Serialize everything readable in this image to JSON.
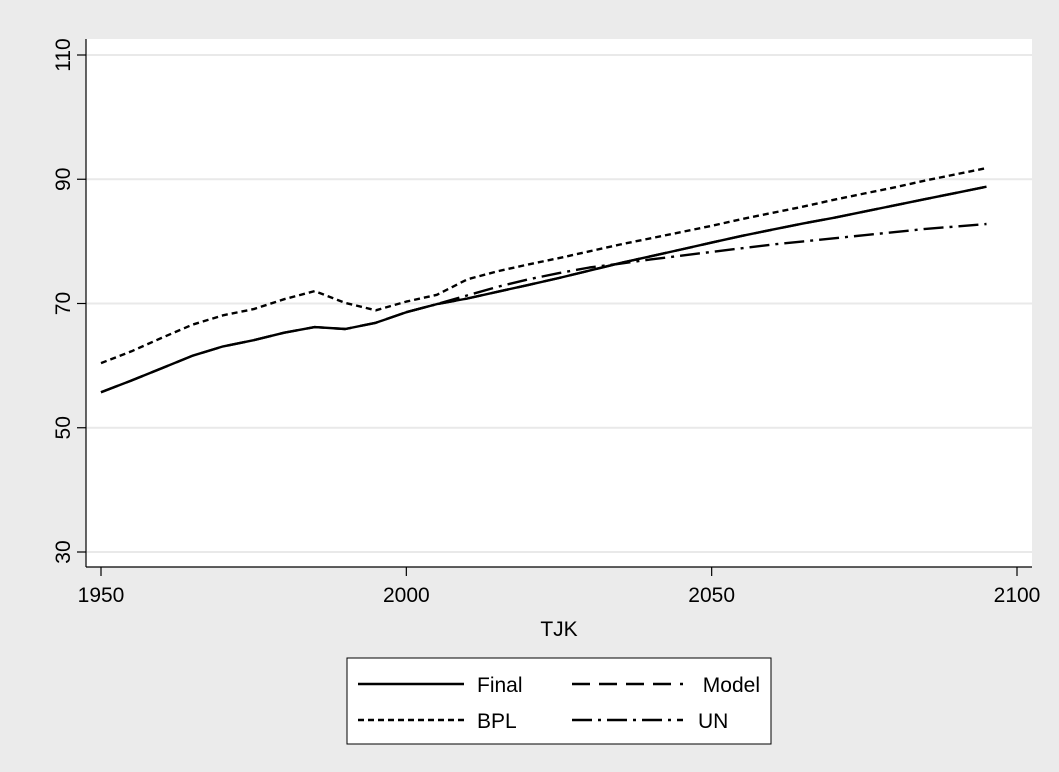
{
  "chart_data": {
    "type": "line",
    "title": "",
    "xlabel": "TJK",
    "ylabel": "",
    "xlim": [
      1948,
      2100
    ],
    "ylim": [
      28,
      112
    ],
    "xticks": [
      1950,
      2000,
      2050,
      2100
    ],
    "yticks": [
      30,
      50,
      70,
      90,
      110
    ],
    "grid": "horizontal",
    "legend_position": "bottom",
    "series": [
      {
        "name": "Final",
        "dash": "solid",
        "x": [
          1950,
          1955,
          1960,
          1965,
          1970,
          1975,
          1980,
          1985,
          1990,
          1995,
          2000,
          2005,
          2010,
          2015,
          2020,
          2025,
          2030,
          2035,
          2040,
          2045,
          2050,
          2055,
          2060,
          2065,
          2070,
          2075,
          2080,
          2085,
          2090,
          2095
        ],
        "y": [
          55.7,
          57.6,
          59.6,
          61.6,
          63.1,
          64.1,
          65.3,
          66.2,
          65.9,
          66.9,
          68.6,
          69.9,
          70.8,
          71.9,
          73.0,
          74.1,
          75.3,
          76.5,
          77.6,
          78.7,
          79.8,
          80.9,
          81.9,
          82.9,
          83.8,
          84.8,
          85.8,
          86.8,
          87.8,
          88.8
        ]
      },
      {
        "name": "Model",
        "dash": "long-dash",
        "x": [
          1950,
          1955,
          1960,
          1965,
          1970,
          1975,
          1980,
          1985,
          1990,
          1995,
          2000,
          2005,
          2010,
          2015,
          2020,
          2025,
          2030,
          2035,
          2040,
          2045,
          2050,
          2055,
          2060,
          2065,
          2070,
          2075,
          2080,
          2085,
          2090,
          2095
        ],
        "y": [
          55.7,
          57.6,
          59.6,
          61.6,
          63.1,
          64.1,
          65.3,
          66.2,
          65.9,
          66.9,
          68.6,
          69.9,
          70.8,
          71.9,
          73.0,
          74.1,
          75.3,
          76.5,
          77.6,
          78.7,
          79.8,
          80.9,
          81.9,
          82.9,
          83.8,
          84.8,
          85.8,
          86.8,
          87.8,
          88.8
        ]
      },
      {
        "name": "BPL",
        "dash": "short-dash",
        "x": [
          1950,
          1955,
          1960,
          1965,
          1970,
          1975,
          1980,
          1985,
          1990,
          1995,
          2000,
          2005,
          2010,
          2015,
          2020,
          2025,
          2030,
          2035,
          2040,
          2045,
          2050,
          2055,
          2060,
          2065,
          2070,
          2075,
          2080,
          2085,
          2090,
          2095
        ],
        "y": [
          60.4,
          62.3,
          64.5,
          66.6,
          68.1,
          69.1,
          70.7,
          72.0,
          70.1,
          68.9,
          70.3,
          71.4,
          73.9,
          75.2,
          76.3,
          77.3,
          78.4,
          79.5,
          80.5,
          81.5,
          82.5,
          83.6,
          84.6,
          85.6,
          86.7,
          87.7,
          88.7,
          89.8,
          90.8,
          91.8
        ]
      },
      {
        "name": "UN",
        "dash": "dash-dot",
        "x": [
          2000,
          2005,
          2010,
          2015,
          2020,
          2025,
          2030,
          2035,
          2040,
          2045,
          2050,
          2055,
          2060,
          2065,
          2070,
          2075,
          2080,
          2085,
          2090,
          2095
        ],
        "y": [
          68.6,
          69.9,
          71.3,
          72.7,
          73.9,
          74.9,
          75.8,
          76.4,
          77.1,
          77.7,
          78.3,
          78.9,
          79.5,
          80.0,
          80.5,
          81.0,
          81.5,
          82.0,
          82.4,
          82.8
        ]
      }
    ]
  }
}
